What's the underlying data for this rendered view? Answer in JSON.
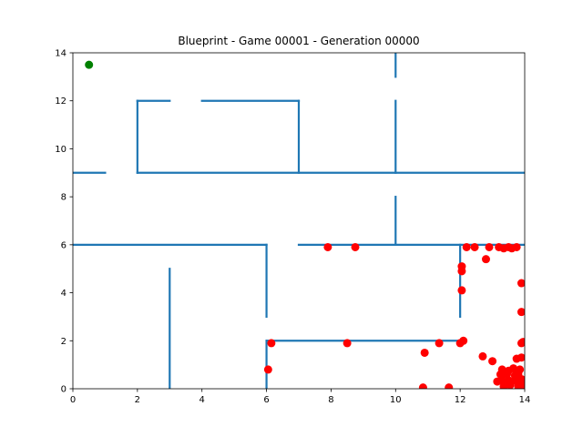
{
  "chart_data": {
    "type": "scatter",
    "title": "Blueprint - Game 00001 - Generation 00000",
    "xlabel": "",
    "ylabel": "",
    "xlim": [
      0,
      14
    ],
    "ylim": [
      0,
      14
    ],
    "x_ticks": [
      0,
      2,
      4,
      6,
      8,
      10,
      12,
      14
    ],
    "y_ticks": [
      0,
      2,
      4,
      6,
      8,
      10,
      12,
      14
    ],
    "grid": false,
    "colors": {
      "walls": "#1f77b4",
      "goal": "#008000",
      "agents": "#ff0000"
    },
    "walls": [
      {
        "x": [
          0,
          1
        ],
        "y": [
          9,
          9
        ]
      },
      {
        "x": [
          2,
          14
        ],
        "y": [
          9,
          9
        ]
      },
      {
        "x": [
          2,
          2
        ],
        "y": [
          9,
          12
        ]
      },
      {
        "x": [
          2,
          3
        ],
        "y": [
          12,
          12
        ]
      },
      {
        "x": [
          4,
          7
        ],
        "y": [
          12,
          12
        ]
      },
      {
        "x": [
          7,
          7
        ],
        "y": [
          12,
          9
        ]
      },
      {
        "x": [
          10,
          10
        ],
        "y": [
          14,
          13
        ]
      },
      {
        "x": [
          10,
          10
        ],
        "y": [
          12,
          9
        ]
      },
      {
        "x": [
          10,
          10
        ],
        "y": [
          8,
          6
        ]
      },
      {
        "x": [
          0,
          6
        ],
        "y": [
          6,
          6
        ]
      },
      {
        "x": [
          6,
          6
        ],
        "y": [
          6,
          3
        ]
      },
      {
        "x": [
          7,
          14
        ],
        "y": [
          6,
          6
        ]
      },
      {
        "x": [
          12,
          12
        ],
        "y": [
          6,
          3
        ]
      },
      {
        "x": [
          3,
          3
        ],
        "y": [
          5,
          0
        ]
      },
      {
        "x": [
          6,
          6
        ],
        "y": [
          2,
          0
        ]
      },
      {
        "x": [
          6,
          12
        ],
        "y": [
          2,
          2
        ]
      }
    ],
    "goal": {
      "x": 0.5,
      "y": 13.5
    },
    "agents": {
      "x": [
        7.9,
        8.75,
        12.2,
        12.45,
        12.9,
        13.2,
        13.35,
        13.5,
        13.6,
        13.75,
        12.05,
        12.05,
        12.8,
        12.05,
        13.9,
        13.9,
        6.15,
        8.5,
        10.9,
        11.35,
        12.0,
        12.1,
        13.9,
        13.95,
        12.7,
        13.0,
        13.75,
        13.9,
        13.3,
        13.5,
        13.65,
        13.85,
        6.05,
        13.25,
        13.45,
        13.7,
        13.8,
        13.15,
        13.3,
        13.5,
        13.6,
        13.75,
        13.9,
        13.35,
        13.55,
        13.8,
        13.95,
        10.85,
        11.65
      ],
      "y": [
        5.9,
        5.9,
        5.9,
        5.9,
        5.9,
        5.9,
        5.85,
        5.9,
        5.85,
        5.9,
        5.1,
        4.9,
        5.4,
        4.1,
        4.4,
        3.2,
        1.9,
        1.9,
        1.5,
        1.9,
        1.9,
        2.0,
        1.9,
        1.95,
        1.35,
        1.15,
        1.25,
        1.3,
        0.8,
        0.75,
        0.85,
        0.8,
        0.8,
        0.6,
        0.6,
        0.55,
        0.6,
        0.3,
        0.35,
        0.35,
        0.3,
        0.35,
        0.4,
        0.1,
        0.15,
        0.1,
        0.15,
        0.05,
        0.05
      ]
    }
  }
}
